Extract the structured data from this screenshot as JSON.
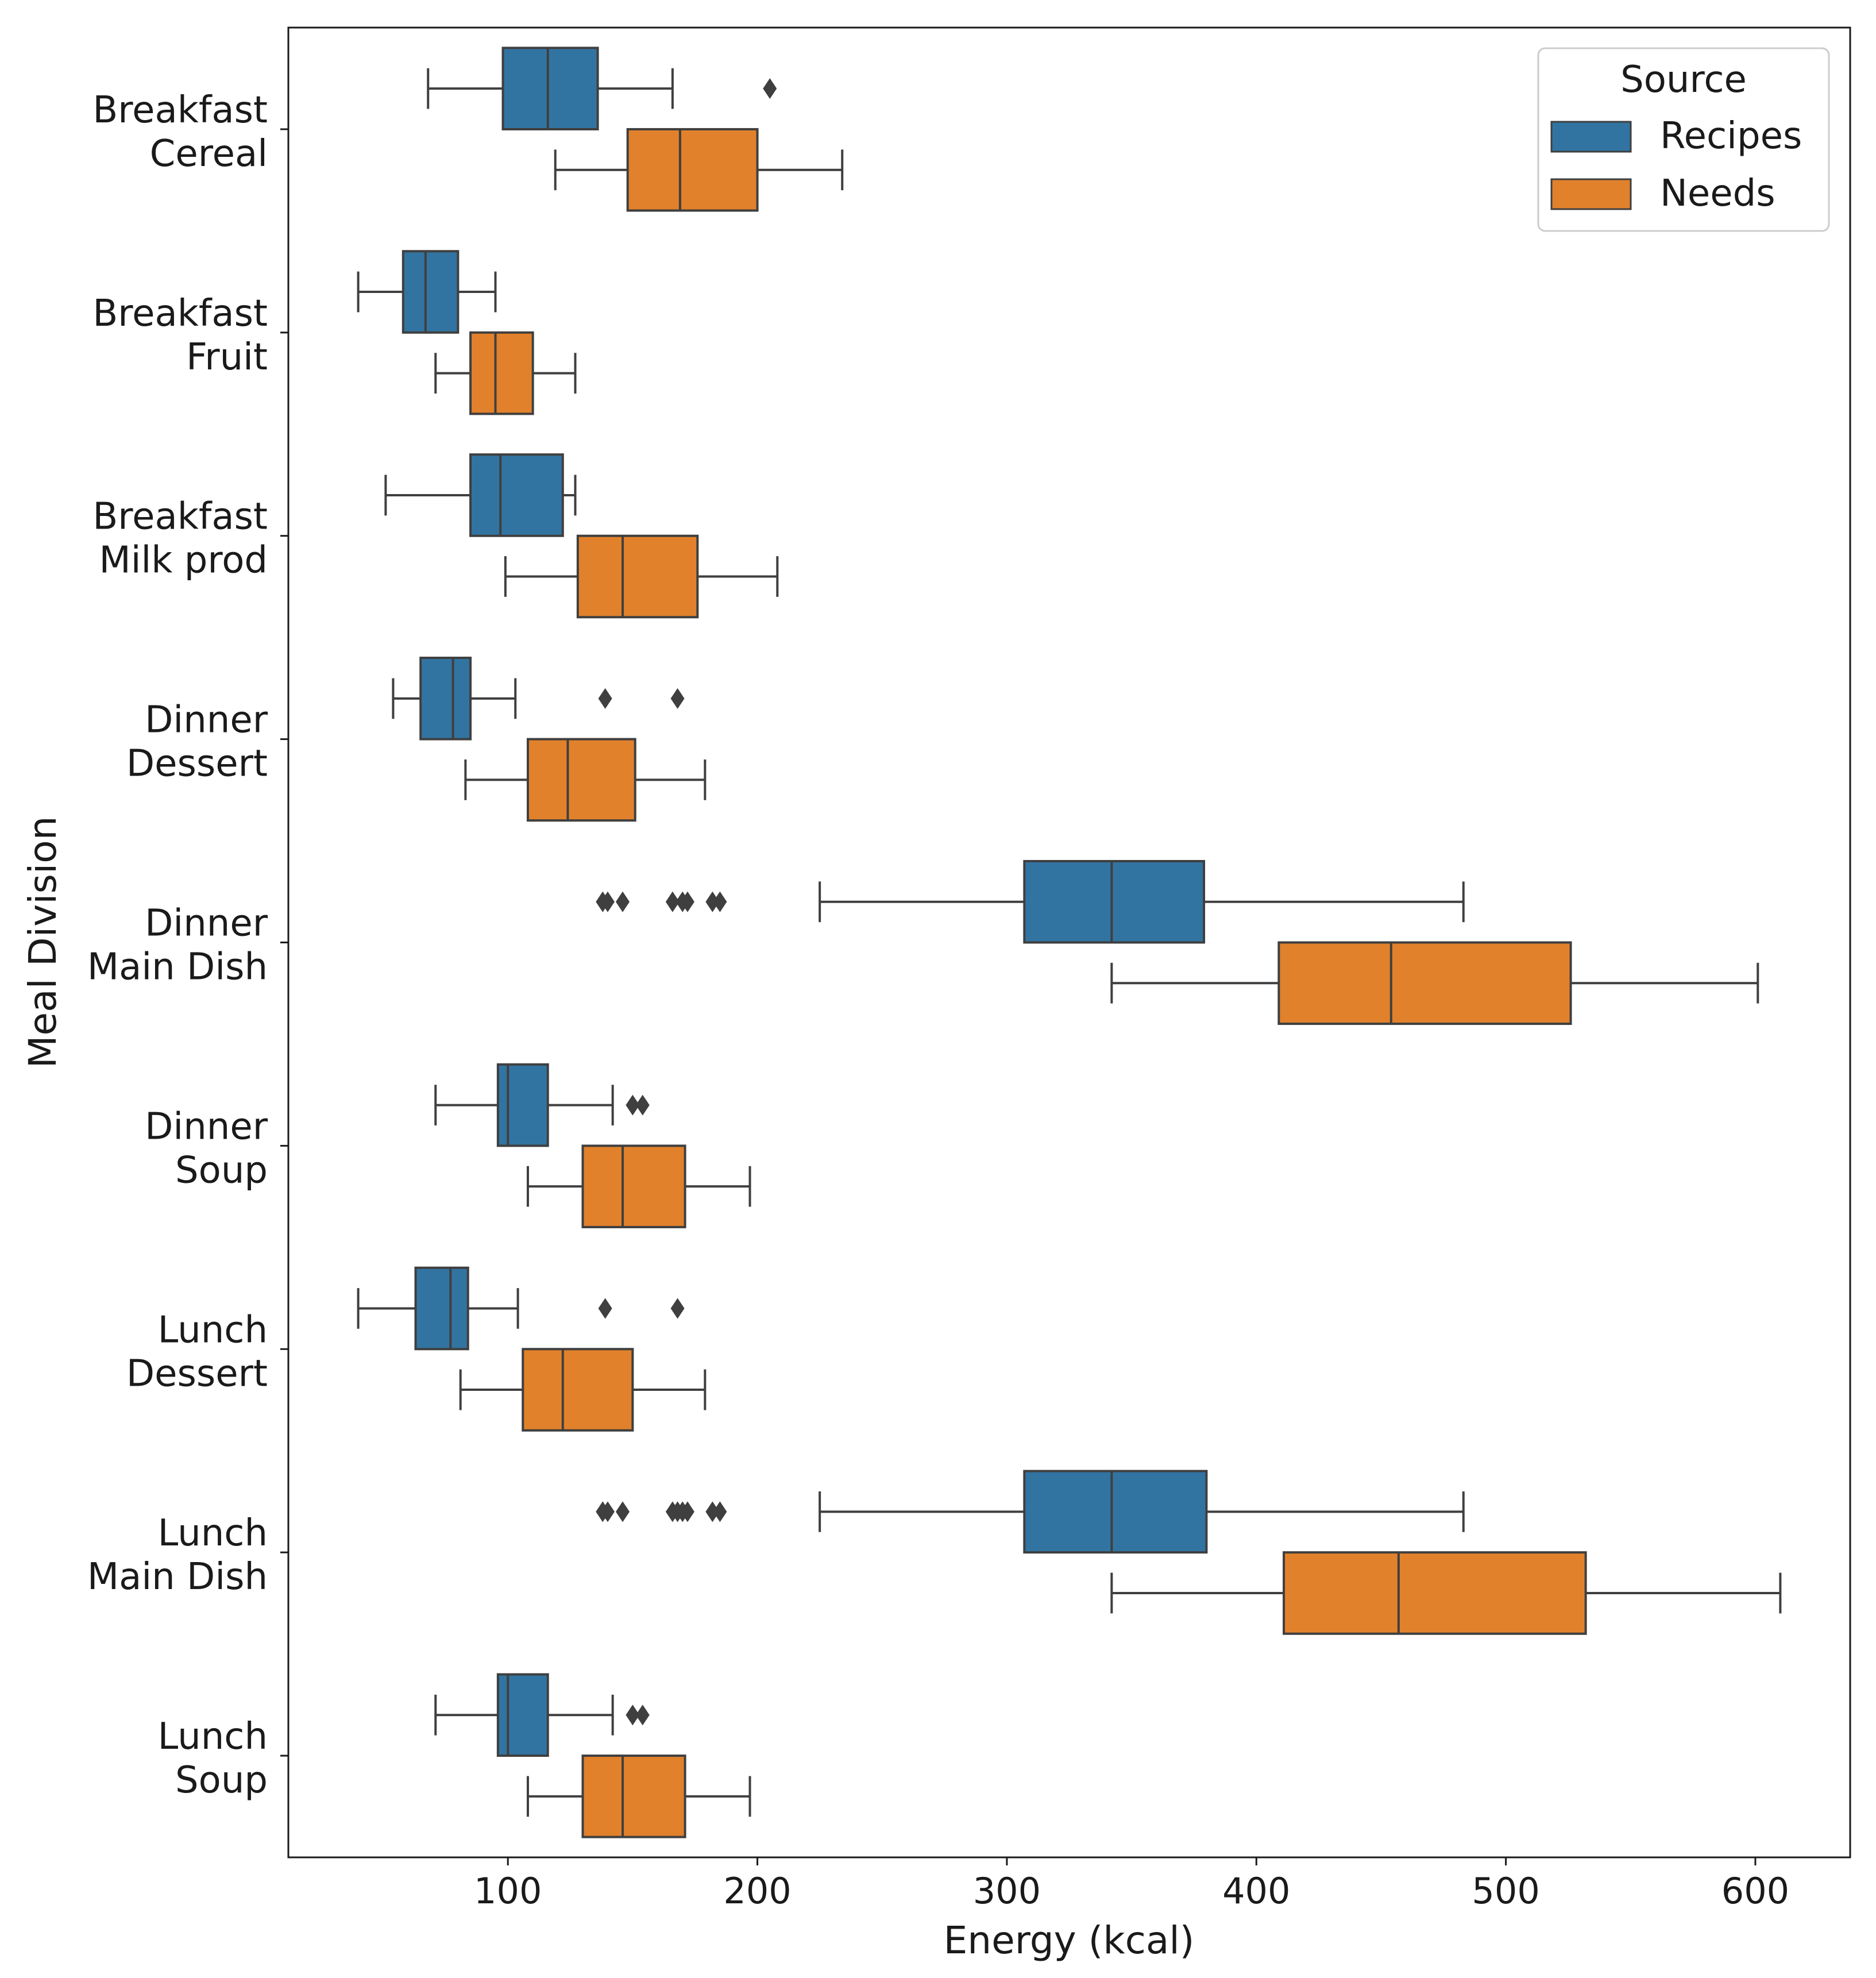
{
  "chart_data": {
    "type": "boxplot",
    "orientation": "horizontal",
    "xlabel": "Energy (kcal)",
    "ylabel": "Meal Division",
    "xlim": [
      12,
      638
    ],
    "xticks": [
      100,
      200,
      300,
      400,
      500,
      600
    ],
    "grid": false,
    "legend": {
      "title": "Source",
      "position": "top-right",
      "entries": [
        {
          "name": "Recipes",
          "color": "#3274a1"
        },
        {
          "name": "Needs",
          "color": "#e1812c"
        }
      ]
    },
    "categories": [
      {
        "line1": "Breakfast",
        "line2": "Cereal"
      },
      {
        "line1": "Breakfast",
        "line2": "Fruit"
      },
      {
        "line1": "Breakfast",
        "line2": "Milk prod"
      },
      {
        "line1": "Dinner",
        "line2": "Dessert"
      },
      {
        "line1": "Dinner",
        "line2": "Main Dish"
      },
      {
        "line1": "Dinner",
        "line2": "Soup"
      },
      {
        "line1": "Lunch",
        "line2": "Dessert"
      },
      {
        "line1": "Lunch",
        "line2": "Main Dish"
      },
      {
        "line1": "Lunch",
        "line2": "Soup"
      }
    ],
    "series": [
      {
        "name": "Recipes",
        "color": "#3274a1",
        "boxes": [
          {
            "whislo": 68,
            "q1": 98,
            "med": 116,
            "q3": 136,
            "whishi": 166,
            "fliers": [
              205
            ]
          },
          {
            "whislo": 40,
            "q1": 58,
            "med": 67,
            "q3": 80,
            "whishi": 95,
            "fliers": []
          },
          {
            "whislo": 51,
            "q1": 85,
            "med": 97,
            "q3": 122,
            "whishi": 127,
            "fliers": []
          },
          {
            "whislo": 54,
            "q1": 65,
            "med": 78,
            "q3": 85,
            "whishi": 103,
            "fliers": [
              139,
              168
            ]
          },
          {
            "whislo": 225,
            "q1": 307,
            "med": 342,
            "q3": 379,
            "whishi": 483,
            "fliers": [
              138,
              140,
              146,
              166,
              170,
              172,
              182,
              185
            ]
          },
          {
            "whislo": 71,
            "q1": 96,
            "med": 100,
            "q3": 116,
            "whishi": 142,
            "fliers": [
              150,
              154
            ]
          },
          {
            "whislo": 40,
            "q1": 63,
            "med": 77,
            "q3": 84,
            "whishi": 104,
            "fliers": [
              139,
              168
            ]
          },
          {
            "whislo": 225,
            "q1": 307,
            "med": 342,
            "q3": 380,
            "whishi": 483,
            "fliers": [
              138,
              140,
              146,
              166,
              168,
              170,
              172,
              182,
              185
            ]
          },
          {
            "whislo": 71,
            "q1": 96,
            "med": 100,
            "q3": 116,
            "whishi": 142,
            "fliers": [
              150,
              154
            ]
          }
        ]
      },
      {
        "name": "Needs",
        "color": "#e1812c",
        "boxes": [
          {
            "whislo": 119,
            "q1": 148,
            "med": 169,
            "q3": 200,
            "whishi": 234,
            "fliers": []
          },
          {
            "whislo": 71,
            "q1": 85,
            "med": 95,
            "q3": 110,
            "whishi": 127,
            "fliers": []
          },
          {
            "whislo": 99,
            "q1": 128,
            "med": 146,
            "q3": 176,
            "whishi": 208,
            "fliers": []
          },
          {
            "whislo": 83,
            "q1": 108,
            "med": 124,
            "q3": 151,
            "whishi": 179,
            "fliers": []
          },
          {
            "whislo": 342,
            "q1": 409,
            "med": 454,
            "q3": 526,
            "whishi": 601,
            "fliers": []
          },
          {
            "whislo": 108,
            "q1": 130,
            "med": 146,
            "q3": 171,
            "whishi": 197,
            "fliers": []
          },
          {
            "whislo": 81,
            "q1": 106,
            "med": 122,
            "q3": 150,
            "whishi": 179,
            "fliers": []
          },
          {
            "whislo": 342,
            "q1": 411,
            "med": 457,
            "q3": 532,
            "whishi": 610,
            "fliers": []
          },
          {
            "whislo": 108,
            "q1": 130,
            "med": 146,
            "q3": 171,
            "whishi": 197,
            "fliers": []
          }
        ]
      }
    ]
  }
}
